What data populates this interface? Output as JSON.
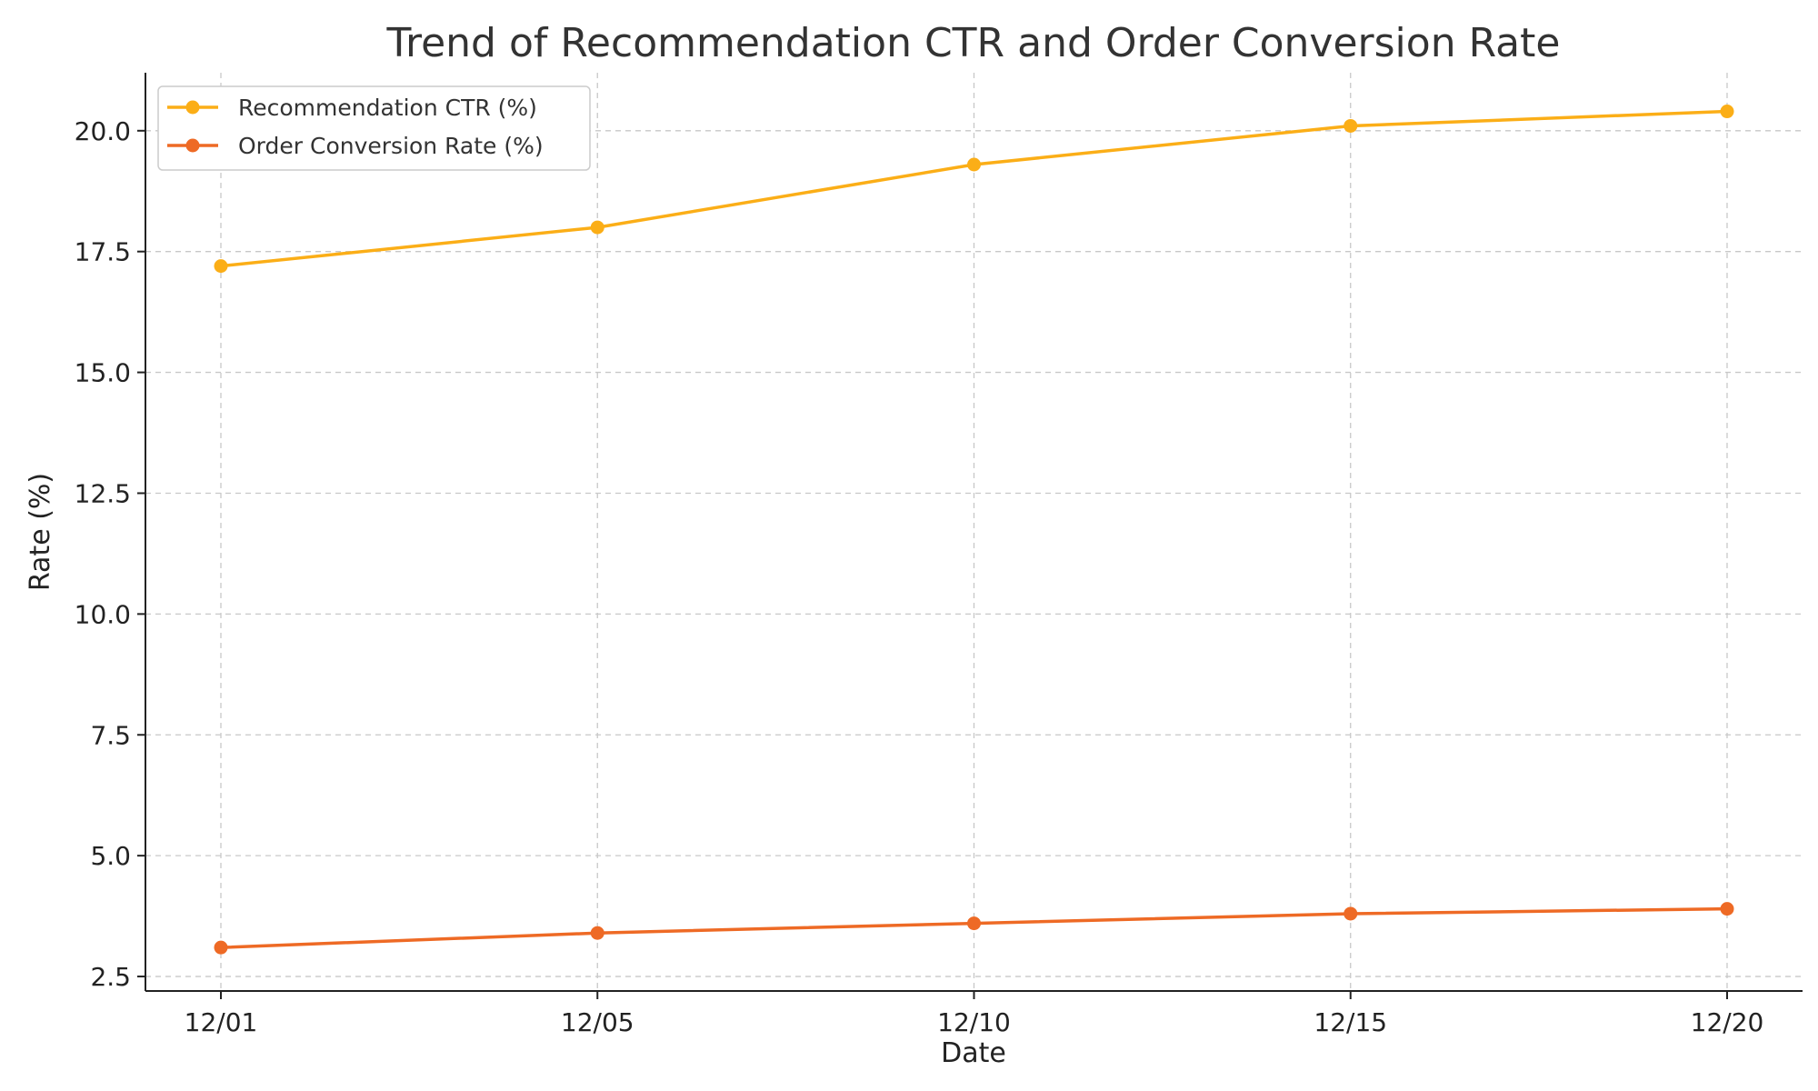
{
  "chart_data": {
    "type": "line",
    "title": "Trend of Recommendation CTR and Order Conversion Rate",
    "xlabel": "Date",
    "ylabel": "Rate (%)",
    "categories": [
      "12/01",
      "12/05",
      "12/10",
      "12/15",
      "12/20"
    ],
    "y_ticks": [
      "2.5",
      "5.0",
      "7.5",
      "10.0",
      "12.5",
      "15.0",
      "17.5",
      "20.0"
    ],
    "ylim": [
      2.2,
      21.2
    ],
    "grid": true,
    "legend_position": "top-left",
    "series": [
      {
        "name": "Recommendation CTR (%)",
        "color": "#FBAE17",
        "values": [
          17.2,
          18.0,
          19.3,
          20.1,
          20.4
        ]
      },
      {
        "name": "Order Conversion Rate (%)",
        "color": "#EE6A25",
        "values": [
          3.1,
          3.4,
          3.6,
          3.8,
          3.9
        ]
      }
    ]
  }
}
